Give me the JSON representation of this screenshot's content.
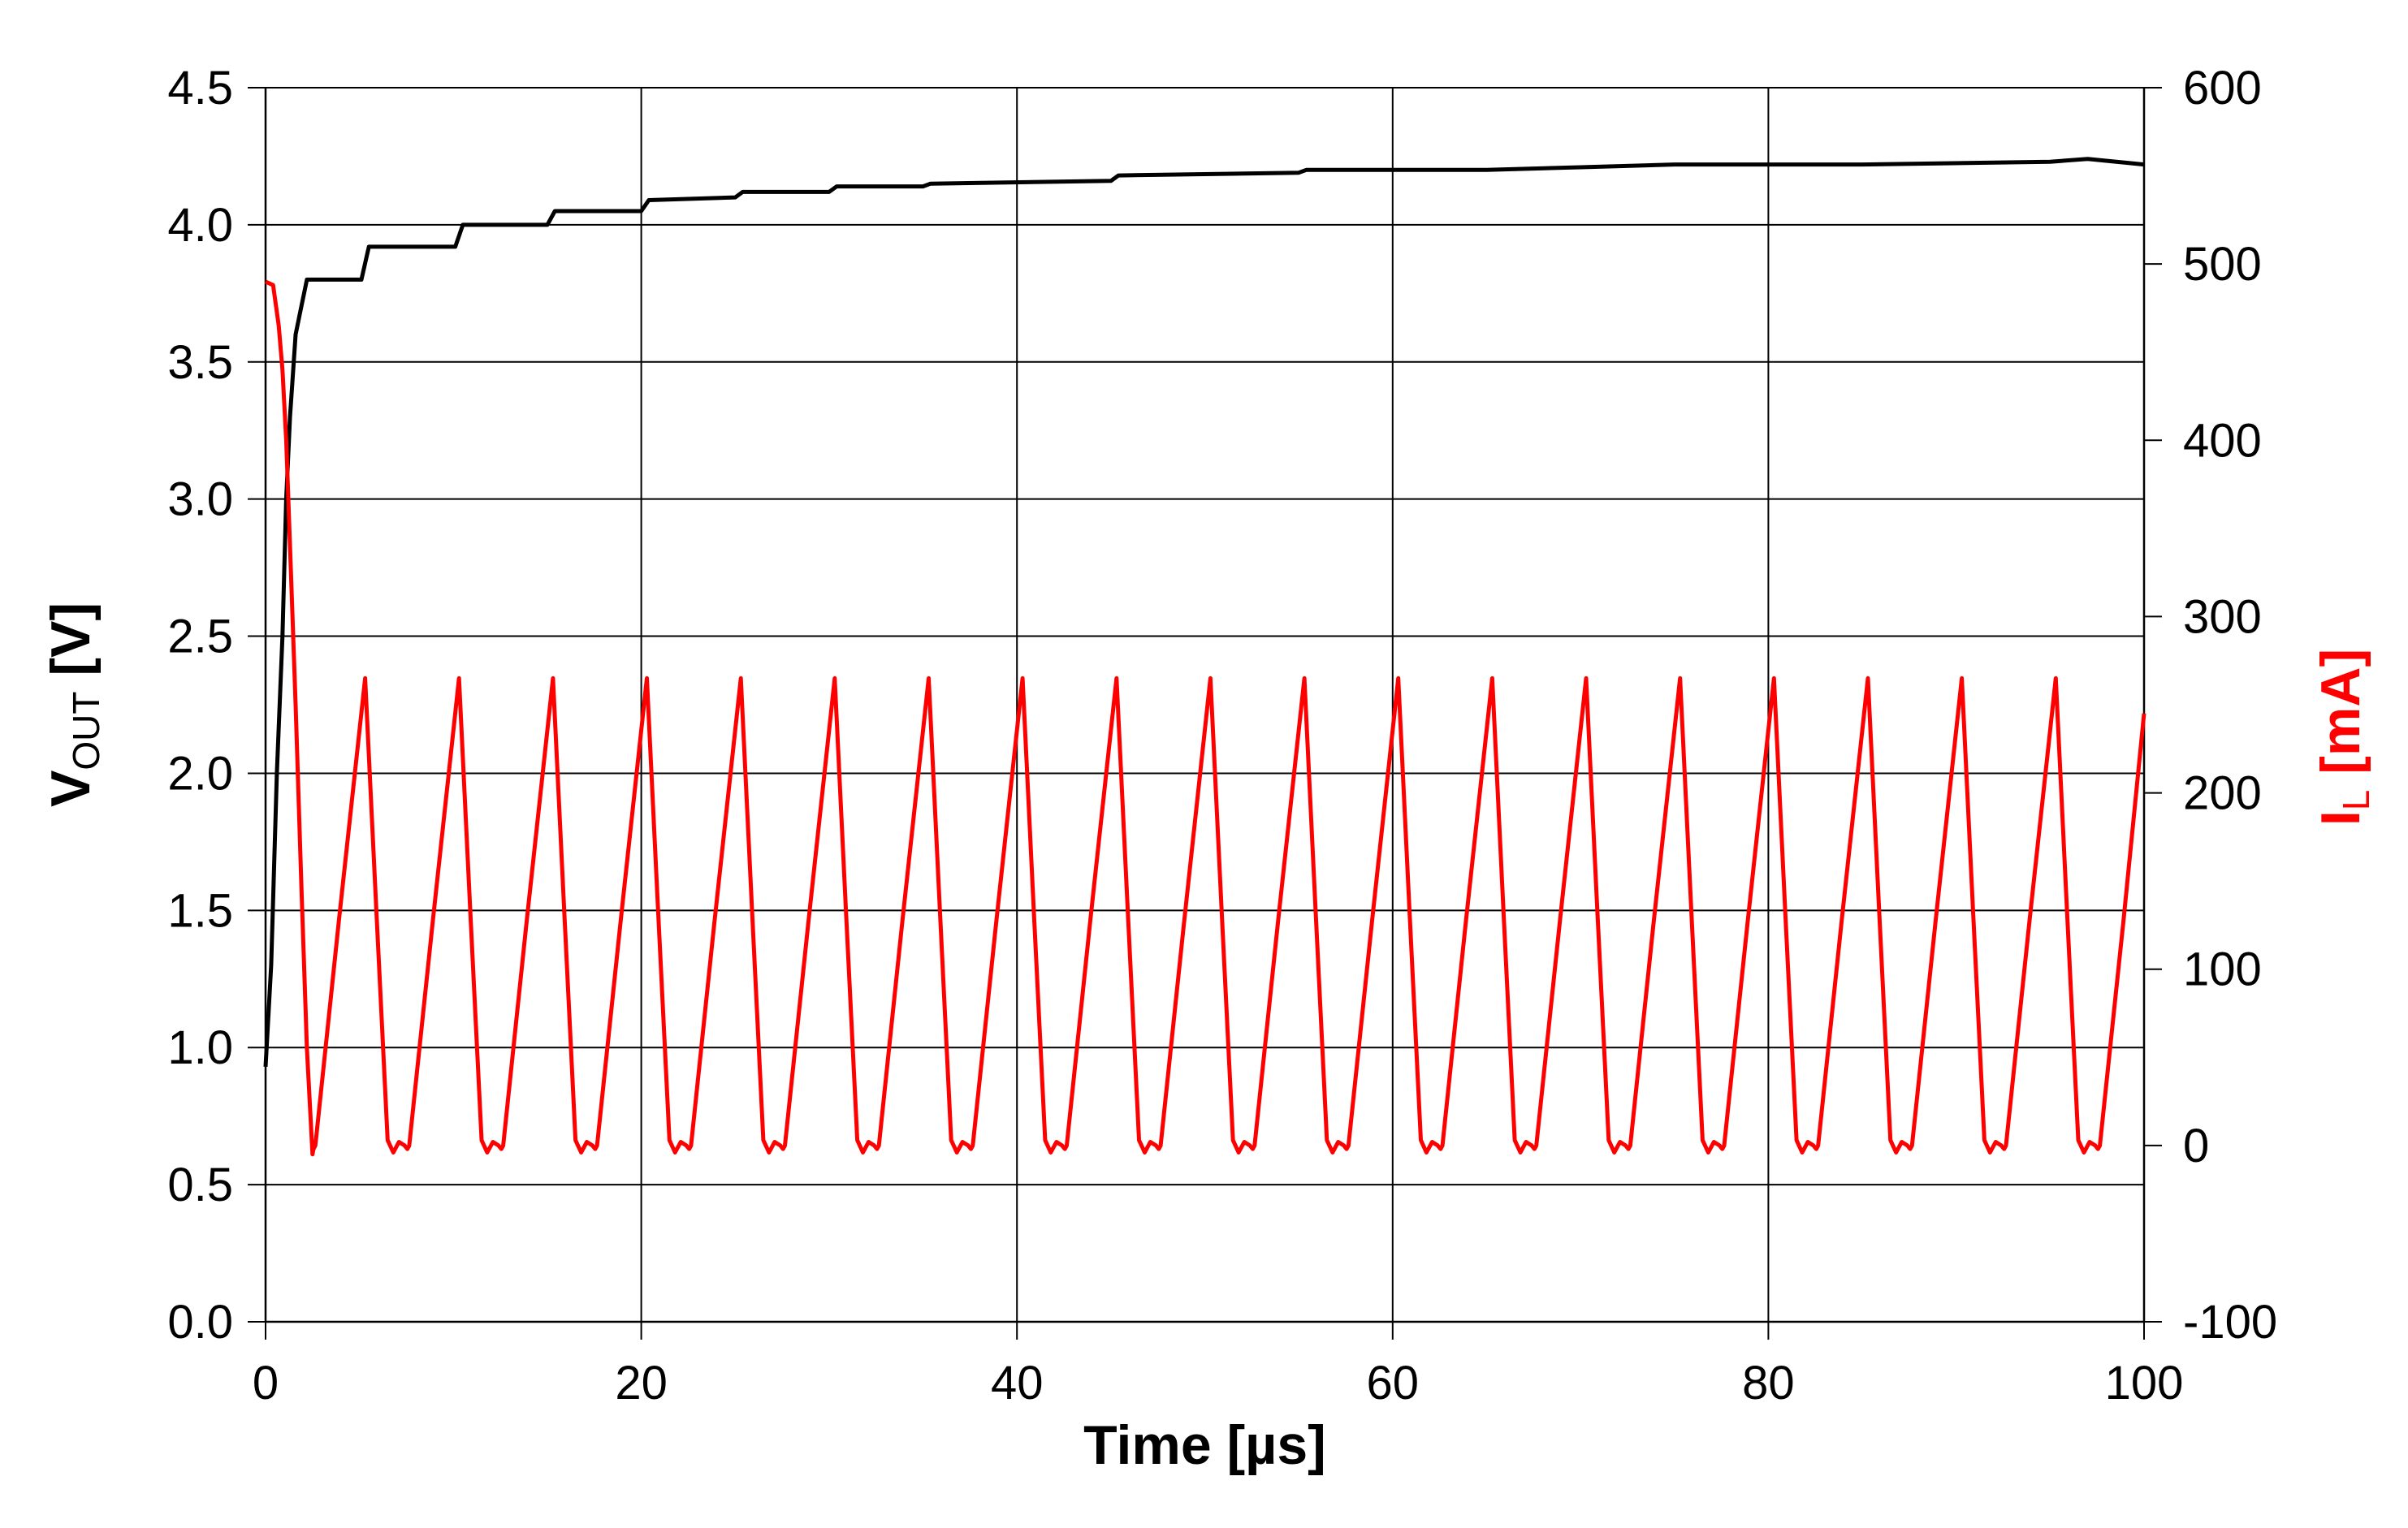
{
  "chart_data": {
    "type": "line",
    "title": "",
    "xlabel": "Time [µs]",
    "ylabel_left": {
      "main": "V",
      "sub": "OUT",
      "unit": " [V]"
    },
    "ylabel_right": {
      "main": "I",
      "sub": "L",
      "unit": " [mA]"
    },
    "xlim": [
      0,
      100
    ],
    "ylim_left": [
      0,
      4.5
    ],
    "ylim_right": [
      -100,
      600
    ],
    "x_ticks": [
      "0",
      "20",
      "40",
      "60",
      "80",
      "100"
    ],
    "y_left_ticks": [
      "0.0",
      "0.5",
      "1.0",
      "1.5",
      "2.0",
      "2.5",
      "3.0",
      "3.5",
      "4.0",
      "4.5"
    ],
    "y_right_ticks": [
      "-100",
      "0",
      "100",
      "200",
      "300",
      "400",
      "500",
      "600"
    ],
    "grid": true,
    "colors": {
      "vout": "#000000",
      "il": "#ff0000",
      "right_axis_label": "#ff0000"
    },
    "series": [
      {
        "axis": "left",
        "color": "#000000",
        "points": [
          [
            0,
            0.93
          ],
          [
            0.3,
            1.3
          ],
          [
            0.6,
            2.0
          ],
          [
            0.9,
            2.5
          ],
          [
            1.1,
            3.0
          ],
          [
            1.3,
            3.3
          ],
          [
            1.6,
            3.6
          ],
          [
            1.9,
            3.7
          ],
          [
            2.2,
            3.8
          ],
          [
            5.1,
            3.8
          ],
          [
            5.5,
            3.92
          ],
          [
            10.1,
            3.92
          ],
          [
            10.5,
            4.0
          ],
          [
            15.0,
            4.0
          ],
          [
            15.4,
            4.05
          ],
          [
            20.0,
            4.05
          ],
          [
            20.4,
            4.09
          ],
          [
            25.0,
            4.1
          ],
          [
            25.4,
            4.12
          ],
          [
            30.0,
            4.12
          ],
          [
            30.4,
            4.14
          ],
          [
            35.0,
            4.14
          ],
          [
            35.4,
            4.15
          ],
          [
            45.0,
            4.16
          ],
          [
            45.4,
            4.18
          ],
          [
            55.0,
            4.19
          ],
          [
            55.4,
            4.2
          ],
          [
            65.0,
            4.2
          ],
          [
            70.0,
            4.21
          ],
          [
            75.0,
            4.22
          ],
          [
            85.0,
            4.22
          ],
          [
            95.0,
            4.23
          ],
          [
            97.0,
            4.24
          ],
          [
            100,
            4.22
          ]
        ]
      },
      {
        "axis": "right",
        "color": "#ff0000",
        "initial": [
          [
            0,
            490
          ],
          [
            0.4,
            488
          ],
          [
            0.7,
            465
          ],
          [
            0.9,
            440
          ],
          [
            1.1,
            400
          ],
          [
            1.3,
            340
          ],
          [
            1.6,
            250
          ],
          [
            1.9,
            150
          ],
          [
            2.2,
            55
          ],
          [
            2.5,
            -5
          ]
        ],
        "cycle": {
          "start": 2.5,
          "period": 5.0,
          "peak": 265,
          "trough": 0,
          "rise_start_offset": 0.15,
          "rise_end_offset": 2.8,
          "fall_end_offset": 4.0,
          "end": 100
        }
      }
    ]
  }
}
